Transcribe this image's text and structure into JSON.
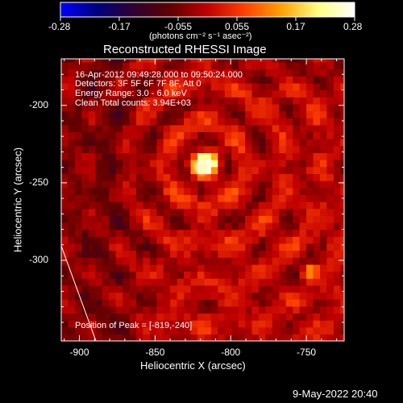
{
  "colorbar": {
    "ticks": [
      "-0.28",
      "-0.17",
      "-0.055",
      "0.055",
      "0.17",
      "0.28"
    ],
    "units": "(photons cm⁻² s⁻¹ asec⁻²)",
    "range": [
      -0.28,
      0.28
    ],
    "colors": [
      "#0000ff",
      "#000080",
      "#300030",
      "#600000",
      "#c00000",
      "#ff4000",
      "#ffa000",
      "#ffff80",
      "#ffffff"
    ]
  },
  "chart_data": {
    "type": "heatmap",
    "title": "Reconstructed RHESSI Image",
    "xlabel": "Heliocentric X (arcsec)",
    "ylabel": "Heliocentric Y (arcsec)",
    "xlim": [
      -912,
      -725
    ],
    "ylim": [
      -352,
      -170
    ],
    "x_ticks": [
      "-900",
      "-850",
      "-800",
      "-750"
    ],
    "x_tick_values": [
      -900,
      -850,
      -800,
      -750
    ],
    "y_ticks": [
      "-200",
      "-250",
      "-300"
    ],
    "y_tick_values": [
      -200,
      -250,
      -300
    ],
    "peak": {
      "x": -819,
      "y": -240,
      "value": 0.28
    },
    "secondary_source": {
      "x": -750,
      "y": -309
    },
    "annotations": {
      "time_range": "16-Apr-2012 09:49:28.000 to 09:50:24.000",
      "detectors": "Detectors: 3F 5F 6F 7F 8F, Att 0",
      "energy": "Energy Range: 3.0 - 6.0 keV",
      "clean": "Clean    Total counts: 3.94E+03",
      "peak_position": "Position of Peak = [-819,-240]"
    }
  },
  "footer": {
    "date": "9-May-2022 20:40"
  }
}
